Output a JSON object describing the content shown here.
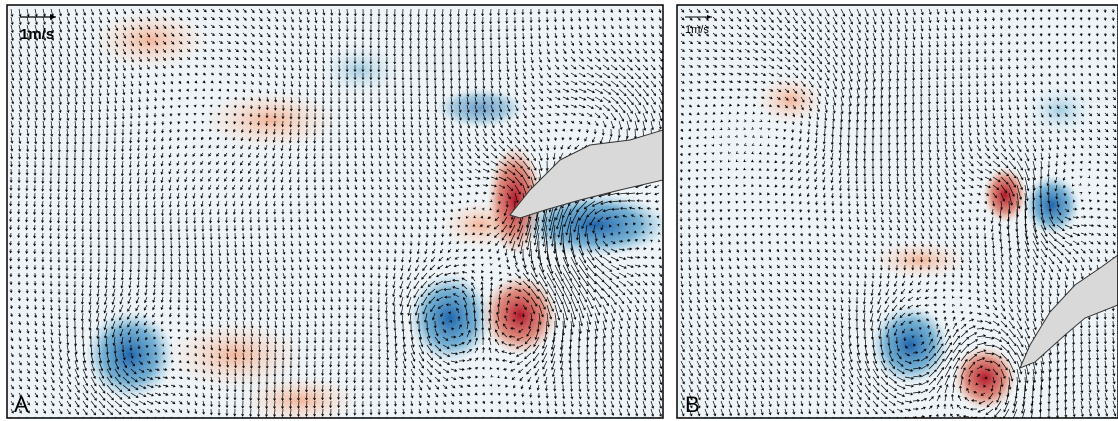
{
  "panels": [
    {
      "label": "A",
      "scale_label": "1m/s"
    },
    {
      "label": "B",
      "scale_label": "1m/s"
    }
  ]
}
